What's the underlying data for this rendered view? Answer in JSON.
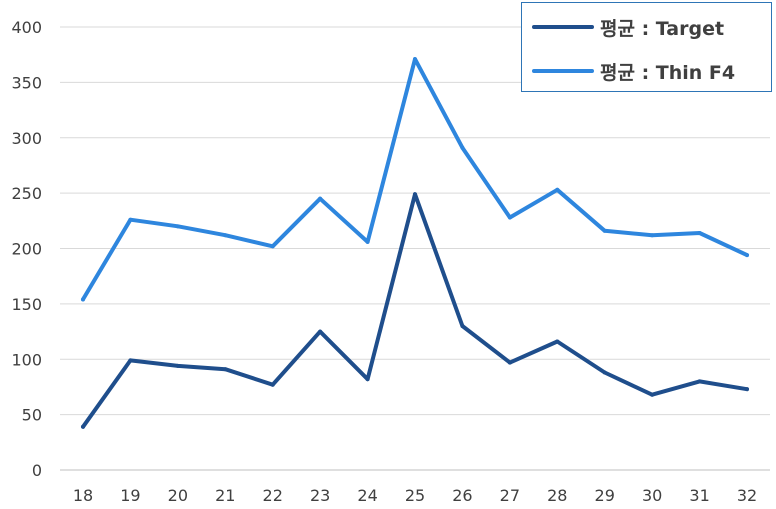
{
  "chart_data": {
    "type": "line",
    "x": [
      18,
      19,
      20,
      21,
      22,
      23,
      24,
      25,
      26,
      27,
      28,
      29,
      30,
      31,
      32
    ],
    "ylim": [
      0,
      400
    ],
    "yticks": [
      0,
      50,
      100,
      150,
      200,
      250,
      300,
      350,
      400
    ],
    "grid": true,
    "legend_position": "top-right",
    "series": [
      {
        "name": "평균 : Target",
        "color": "#1f4e8c",
        "values": [
          39,
          99,
          94,
          91,
          77,
          125,
          82,
          249,
          130,
          97,
          116,
          88,
          68,
          80,
          73
        ]
      },
      {
        "name": "평균 : Thin F4",
        "color": "#2e86de",
        "values": [
          154,
          226,
          220,
          212,
          202,
          245,
          206,
          371,
          291,
          228,
          253,
          216,
          212,
          214,
          194
        ]
      }
    ]
  }
}
